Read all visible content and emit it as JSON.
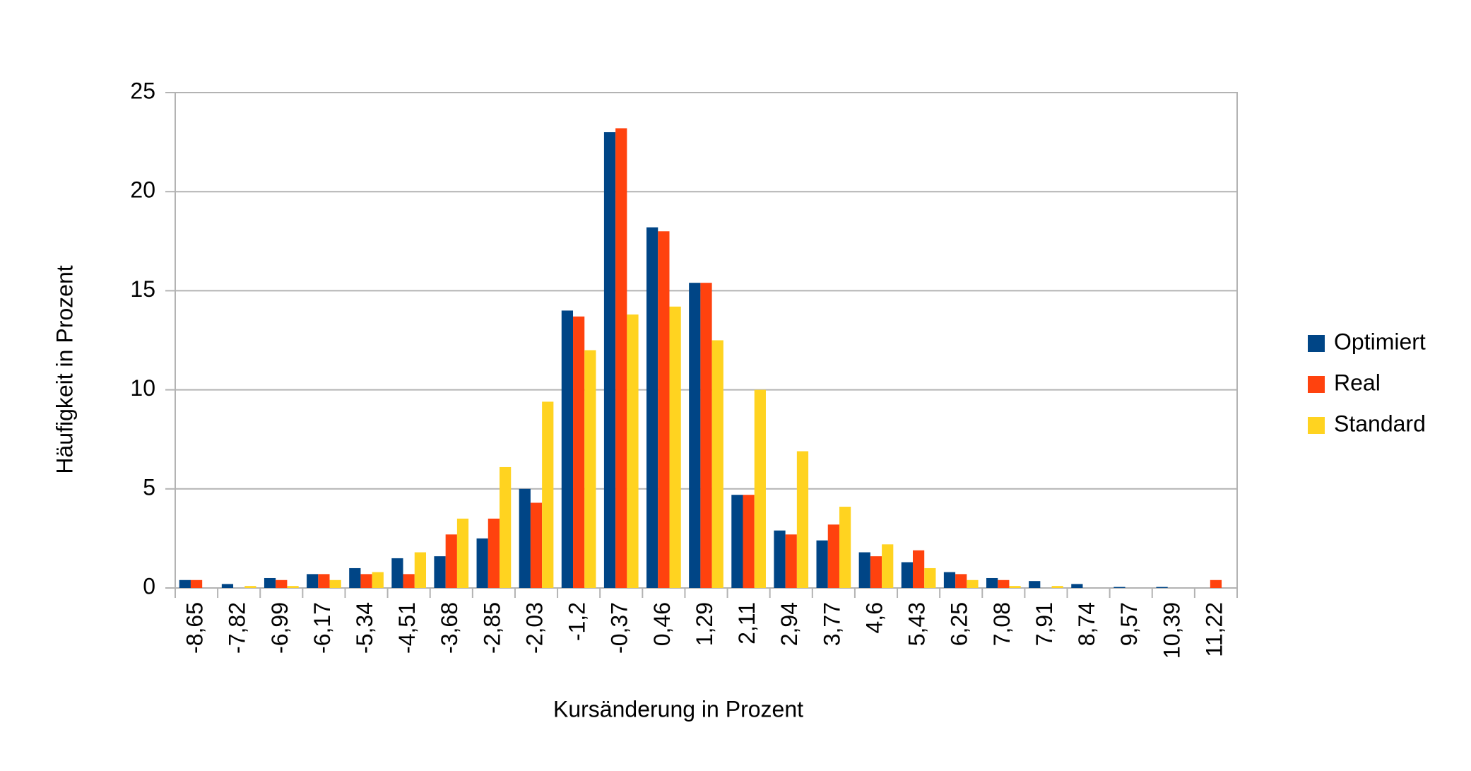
{
  "chart_data": {
    "type": "bar",
    "x_label": "Kursänderung in Prozent",
    "y_label": "Häufigkeit in Prozent",
    "categories": [
      "-8,65",
      "-7,82",
      "-6,99",
      "-6,17",
      "-5,34",
      "-4,51",
      "-3,68",
      "-2,85",
      "-2,03",
      "-1,2",
      "-0,37",
      "0,46",
      "1,29",
      "2,11",
      "2,94",
      "3,77",
      "4,6",
      "5,43",
      "6,25",
      "7,08",
      "7,91",
      "8,74",
      "9,57",
      "10,39",
      "11,22"
    ],
    "series": [
      {
        "name": "Optimiert",
        "color": "#004586",
        "values": [
          0.4,
          0.2,
          0.5,
          0.7,
          1.0,
          1.5,
          1.6,
          2.5,
          5.0,
          14.0,
          23.0,
          18.2,
          15.4,
          4.7,
          2.9,
          2.4,
          1.8,
          1.3,
          0.8,
          0.5,
          0.35,
          0.2,
          0.05,
          0.05,
          0
        ]
      },
      {
        "name": "Real",
        "color": "#ff420e",
        "values": [
          0.4,
          0,
          0.4,
          0.7,
          0.7,
          0.7,
          2.7,
          3.5,
          4.3,
          13.7,
          23.2,
          18.0,
          15.4,
          4.7,
          2.7,
          3.2,
          1.6,
          1.9,
          0.7,
          0.4,
          0,
          0,
          0,
          0,
          0.4
        ]
      },
      {
        "name": "Standard",
        "color": "#ffd320",
        "values": [
          0,
          0.1,
          0.1,
          0.4,
          0.8,
          1.8,
          3.5,
          6.1,
          9.4,
          12.0,
          13.8,
          14.2,
          12.5,
          10.0,
          6.9,
          4.1,
          2.2,
          1.0,
          0.4,
          0.1,
          0.1,
          0,
          0,
          0,
          0
        ]
      }
    ],
    "ylim": [
      0,
      25
    ],
    "yticks": [
      0,
      5,
      10,
      15,
      20,
      25
    ],
    "grid": true,
    "legend": "right"
  }
}
